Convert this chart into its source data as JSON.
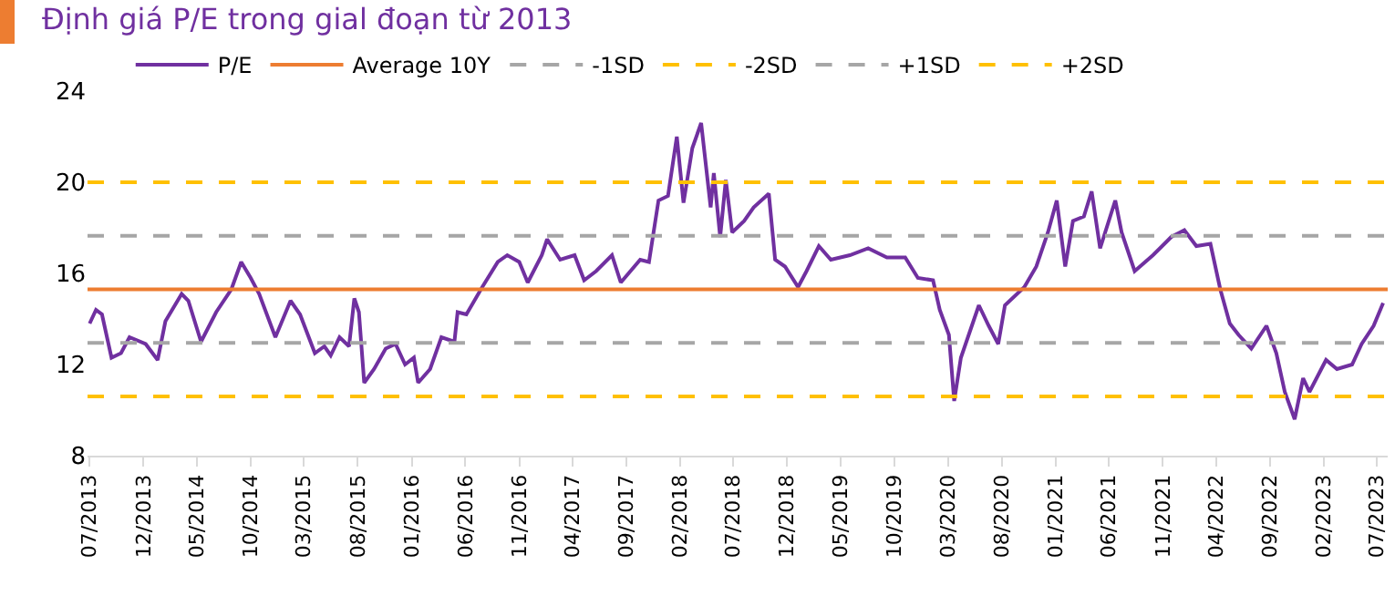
{
  "chart_data": {
    "type": "line",
    "title": "Định giá P/E trong gial đoạn từ 2013",
    "x": [
      "2013-07-01",
      "2013-07-19",
      "2013-08-05",
      "2013-09-01",
      "2013-09-28",
      "2013-10-22",
      "2013-12-07",
      "2014-01-10",
      "2014-02-01",
      "2014-03-19",
      "2014-04-07",
      "2014-05-13",
      "2014-06-25",
      "2014-08-07",
      "2014-09-04",
      "2014-10-01",
      "2014-10-25",
      "2014-12-10",
      "2015-01-22",
      "2015-02-18",
      "2015-04-01",
      "2015-04-28",
      "2015-05-16",
      "2015-06-10",
      "2015-07-07",
      "2015-07-22",
      "2015-08-04",
      "2015-08-19",
      "2015-09-16",
      "2015-10-19",
      "2015-11-16",
      "2015-12-13",
      "2016-01-07",
      "2016-01-19",
      "2016-02-22",
      "2016-03-25",
      "2016-05-01",
      "2016-05-10",
      "2016-06-04",
      "2016-07-19",
      "2016-09-01",
      "2016-09-28",
      "2016-11-01",
      "2016-11-25",
      "2017-01-04",
      "2017-01-19",
      "2017-02-25",
      "2017-04-07",
      "2017-05-04",
      "2017-06-07",
      "2017-07-22",
      "2017-08-16",
      "2017-10-10",
      "2017-11-04",
      "2017-12-01",
      "2017-12-28",
      "2018-01-22",
      "2018-02-10",
      "2018-03-07",
      "2018-04-01",
      "2018-04-28",
      "2018-05-07",
      "2018-05-25",
      "2018-06-10",
      "2018-06-28",
      "2018-08-01",
      "2018-08-28",
      "2018-10-10",
      "2018-10-28",
      "2018-11-25",
      "2019-01-01",
      "2019-01-25",
      "2019-03-01",
      "2019-04-04",
      "2019-05-28",
      "2019-07-19",
      "2019-09-10",
      "2019-11-01",
      "2019-12-07",
      "2020-01-19",
      "2020-02-07",
      "2020-03-04",
      "2020-03-19",
      "2020-04-07",
      "2020-05-28",
      "2020-06-25",
      "2020-07-22",
      "2020-08-10",
      "2020-10-04",
      "2020-11-07",
      "2020-12-10",
      "2021-01-04",
      "2021-01-28",
      "2021-02-19",
      "2021-03-22",
      "2021-04-13",
      "2021-05-07",
      "2021-06-19",
      "2021-07-07",
      "2021-08-13",
      "2021-10-04",
      "2021-11-25",
      "2022-01-01",
      "2022-02-04",
      "2022-03-16",
      "2022-04-13",
      "2022-05-10",
      "2022-06-04",
      "2022-07-10",
      "2022-08-22",
      "2022-09-19",
      "2022-10-13",
      "2022-11-10",
      "2022-12-04",
      "2022-12-22",
      "2023-02-07",
      "2023-03-10",
      "2023-04-22",
      "2023-05-19",
      "2023-06-22",
      "2023-07-19"
    ],
    "series": [
      {
        "name": "P/E",
        "color": "#7030a0",
        "values": [
          13.8,
          14.4,
          14.2,
          12.3,
          12.5,
          13.2,
          12.9,
          12.2,
          13.9,
          15.1,
          14.8,
          13.0,
          14.3,
          15.3,
          16.5,
          15.8,
          15.1,
          13.2,
          14.8,
          14.2,
          12.5,
          12.8,
          12.4,
          13.2,
          12.8,
          14.9,
          14.3,
          11.2,
          11.8,
          12.7,
          12.9,
          12.0,
          12.3,
          11.2,
          11.8,
          13.2,
          13.0,
          14.3,
          14.2,
          15.4,
          16.5,
          16.8,
          16.5,
          15.6,
          16.8,
          17.5,
          16.6,
          16.8,
          15.7,
          16.1,
          16.8,
          15.6,
          16.6,
          16.5,
          19.2,
          19.4,
          22.0,
          19.1,
          21.5,
          22.6,
          18.9,
          20.4,
          17.6,
          20.1,
          17.8,
          18.3,
          18.9,
          19.5,
          16.6,
          16.3,
          15.4,
          16.1,
          17.2,
          16.6,
          16.8,
          17.1,
          16.7,
          16.7,
          15.8,
          15.7,
          14.4,
          13.3,
          10.4,
          12.3,
          14.6,
          13.7,
          12.9,
          14.6,
          15.4,
          16.3,
          17.8,
          19.2,
          16.3,
          18.3,
          18.5,
          19.6,
          17.1,
          19.2,
          17.8,
          16.1,
          16.8,
          17.6,
          17.9,
          17.2,
          17.3,
          15.3,
          13.8,
          13.3,
          12.7,
          13.7,
          12.5,
          10.8,
          9.6,
          11.4,
          10.8,
          12.2,
          11.8,
          12.0,
          12.9,
          13.7,
          14.7
        ]
      }
    ],
    "ref_lines": [
      {
        "axis": "y",
        "value": 15.3,
        "label": "Average 10Y",
        "color": "#ed7d31",
        "line_style": "solid"
      },
      {
        "axis": "y",
        "value": 12.95,
        "label": "-1SD",
        "color": "#a6a6a6",
        "line_style": "dashed"
      },
      {
        "axis": "y",
        "value": 10.6,
        "label": "-2SD",
        "color": "#ffc000",
        "line_style": "dashed"
      },
      {
        "axis": "y",
        "value": 17.65,
        "label": "+1SD",
        "color": "#a6a6a6",
        "line_style": "dashed"
      },
      {
        "axis": "y",
        "value": 20.0,
        "label": "+2SD",
        "color": "#ffc000",
        "line_style": "dashed"
      }
    ],
    "xlim": [
      "2013-06-25",
      "2023-08-01"
    ],
    "xticks": [
      {
        "value": "2013-07",
        "label": "07/2013"
      },
      {
        "value": "2013-12",
        "label": "12/2013"
      },
      {
        "value": "2014-05",
        "label": "05/2014"
      },
      {
        "value": "2014-10",
        "label": "10/2014"
      },
      {
        "value": "2015-03",
        "label": "03/2015"
      },
      {
        "value": "2015-08",
        "label": "08/2015"
      },
      {
        "value": "2016-01",
        "label": "01/2016"
      },
      {
        "value": "2016-06",
        "label": "06/2016"
      },
      {
        "value": "2016-11",
        "label": "11/2016"
      },
      {
        "value": "2017-04",
        "label": "04/2017"
      },
      {
        "value": "2017-09",
        "label": "09/2017"
      },
      {
        "value": "2018-02",
        "label": "02/2018"
      },
      {
        "value": "2018-07",
        "label": "07/2018"
      },
      {
        "value": "2018-12",
        "label": "12/2018"
      },
      {
        "value": "2019-05",
        "label": "05/2019"
      },
      {
        "value": "2019-10",
        "label": "10/2019"
      },
      {
        "value": "2020-03",
        "label": "03/2020"
      },
      {
        "value": "2020-08",
        "label": "08/2020"
      },
      {
        "value": "2021-01",
        "label": "01/2021"
      },
      {
        "value": "2021-06",
        "label": "06/2021"
      },
      {
        "value": "2021-11",
        "label": "11/2021"
      },
      {
        "value": "2022-04",
        "label": "04/2022"
      },
      {
        "value": "2022-09",
        "label": "09/2022"
      },
      {
        "value": "2023-02",
        "label": "02/2023"
      },
      {
        "value": "2023-07",
        "label": "07/2023"
      }
    ],
    "ylim": [
      8,
      24
    ],
    "yticks": [
      8,
      12,
      16,
      20,
      24
    ],
    "grid": false,
    "legend": "top",
    "marker": "none",
    "line_style": "solid"
  }
}
